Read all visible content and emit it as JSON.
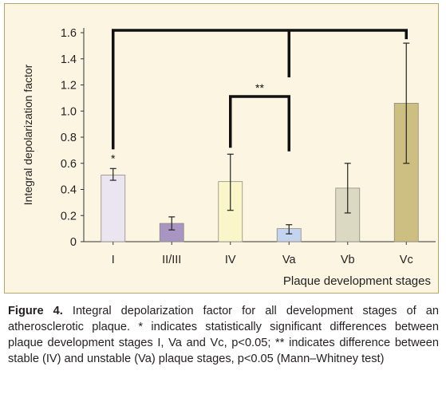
{
  "chart_data": {
    "type": "bar",
    "categories": [
      "I",
      "II/III",
      "IV",
      "Va",
      "Vb",
      "Vc"
    ],
    "values": [
      0.51,
      0.14,
      0.46,
      0.1,
      0.41,
      1.06
    ],
    "error": [
      {
        "low": 0.47,
        "high": 0.56
      },
      {
        "low": 0.09,
        "high": 0.19
      },
      {
        "low": 0.24,
        "high": 0.67
      },
      {
        "low": 0.06,
        "high": 0.13
      },
      {
        "low": 0.22,
        "high": 0.6
      },
      {
        "low": 0.6,
        "high": 1.52
      }
    ],
    "colors": [
      "#ebe5f1",
      "#a995c2",
      "#fbf6c9",
      "#c3d5ee",
      "#dcd9c2",
      "#cdbf82"
    ],
    "xlabel": "Plaque development stages",
    "ylabel": "Integral depolarization factor",
    "ylim": [
      0,
      1.6
    ],
    "yticks": [
      "0",
      "0.2",
      "0.4",
      "0.6",
      "0.8",
      "1.0",
      "1.2",
      "1.4",
      "1.6"
    ],
    "grid": false,
    "annotations": [
      {
        "text": "*",
        "category": "I"
      },
      {
        "text": "**",
        "between": [
          "IV",
          "Va"
        ]
      }
    ],
    "brackets": [
      {
        "categories": [
          "I",
          "Va",
          "Vc"
        ],
        "label": "*"
      },
      {
        "categories": [
          "IV",
          "Va"
        ],
        "label": "**"
      }
    ]
  },
  "caption": {
    "label": "Figure 4.",
    "text": " Integral depolarization factor for all development stages of an atherosclerotic plaque. * indicates statistically significant differences between plaque development stages I, Va and Vc, p<0.05; ** indicates difference between stable (IV) and unstable (Va) plaque stages, p<0.05 (Mann–Whitney test)"
  }
}
